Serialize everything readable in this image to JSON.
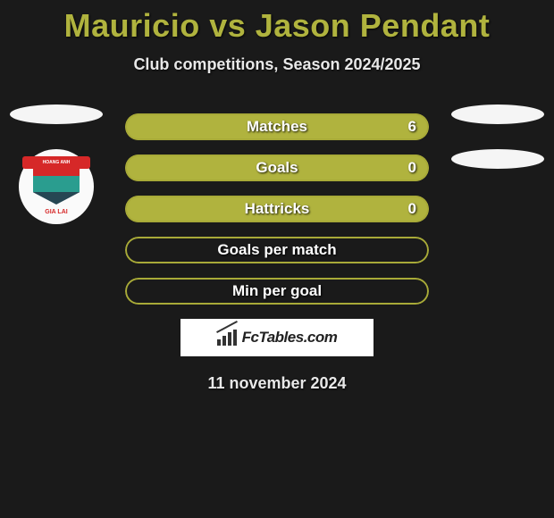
{
  "title": "Mauricio vs Jason Pendant",
  "subtitle": "Club competitions, Season 2024/2025",
  "date": "11 november 2024",
  "logo_text": "FcTables.com",
  "colors": {
    "accent": "#b0b33e",
    "accent_border": "#a8aa38",
    "bg": "#1a1a1a",
    "ellipse": "#f5f5f5"
  },
  "left_badge": {
    "banner_text": "HOANG ANH",
    "bottom_text": "GIA LAI"
  },
  "stats": [
    {
      "label": "Matches",
      "value": "6",
      "fill": true
    },
    {
      "label": "Goals",
      "value": "0",
      "fill": true
    },
    {
      "label": "Hattricks",
      "value": "0",
      "fill": true
    },
    {
      "label": "Goals per match",
      "value": "",
      "fill": false
    },
    {
      "label": "Min per goal",
      "value": "",
      "fill": false
    }
  ]
}
